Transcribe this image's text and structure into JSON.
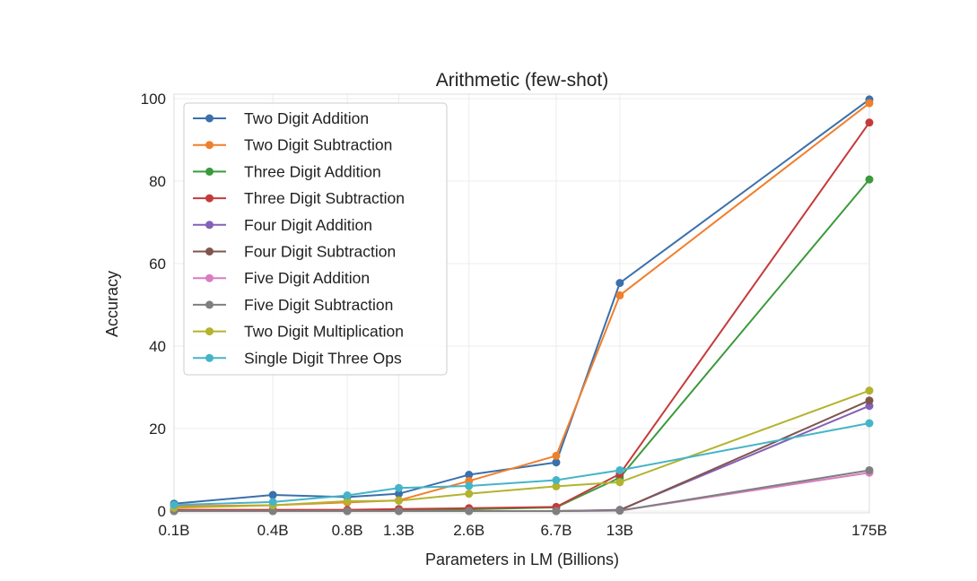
{
  "chart_data": {
    "type": "line",
    "title": "Arithmetic (few-shot)",
    "xlabel": "Parameters in LM (Billions)",
    "ylabel": "Accuracy",
    "x": [
      "0.1B",
      "0.4B",
      "0.8B",
      "1.3B",
      "2.6B",
      "6.7B",
      "13B",
      "175B"
    ],
    "x_scale": "log",
    "x_values": [
      0.125,
      0.35,
      0.76,
      1.3,
      2.7,
      6.7,
      13.0,
      175.0
    ],
    "ylim": [
      0,
      100
    ],
    "yticks": [
      0,
      20,
      40,
      60,
      80,
      100
    ],
    "grid": true,
    "legend_position": "upper-left",
    "series": [
      {
        "name": "Two Digit Addition",
        "color": "#3a70ab",
        "values": [
          1.8,
          3.9,
          3.4,
          4.2,
          8.8,
          11.8,
          55.3,
          99.8
        ]
      },
      {
        "name": "Two Digit Subtraction",
        "color": "#f07f2c",
        "values": [
          1.2,
          1.4,
          2.1,
          2.6,
          7.3,
          13.4,
          52.3,
          98.9
        ]
      },
      {
        "name": "Three Digit Addition",
        "color": "#3c9a3c",
        "values": [
          0.2,
          0.2,
          0.2,
          0.3,
          0.4,
          0.9,
          8.1,
          80.4
        ]
      },
      {
        "name": "Three Digit Subtraction",
        "color": "#c43b3c",
        "values": [
          0.3,
          0.3,
          0.3,
          0.5,
          0.7,
          1.0,
          9.0,
          94.2
        ]
      },
      {
        "name": "Four Digit Addition",
        "color": "#8460b8",
        "values": [
          0.0,
          0.0,
          0.0,
          0.0,
          0.0,
          0.0,
          0.3,
          25.5
        ]
      },
      {
        "name": "Four Digit Subtraction",
        "color": "#7f554d",
        "values": [
          0.0,
          0.0,
          0.0,
          0.0,
          0.0,
          0.0,
          0.2,
          26.8
        ]
      },
      {
        "name": "Five Digit Addition",
        "color": "#d97cc2",
        "values": [
          0.0,
          0.0,
          0.0,
          0.0,
          0.0,
          0.0,
          0.1,
          9.3
        ]
      },
      {
        "name": "Five Digit Subtraction",
        "color": "#7f7f7f",
        "values": [
          0.0,
          0.0,
          0.0,
          0.0,
          0.0,
          0.0,
          0.1,
          9.9
        ]
      },
      {
        "name": "Two Digit Multiplication",
        "color": "#b3b32e",
        "values": [
          0.8,
          1.4,
          2.4,
          2.5,
          4.2,
          6.0,
          7.0,
          29.2
        ]
      },
      {
        "name": "Single Digit Three Ops",
        "color": "#45b4c8",
        "values": [
          1.5,
          2.2,
          3.8,
          5.6,
          6.1,
          7.5,
          9.9,
          21.3
        ]
      }
    ]
  }
}
